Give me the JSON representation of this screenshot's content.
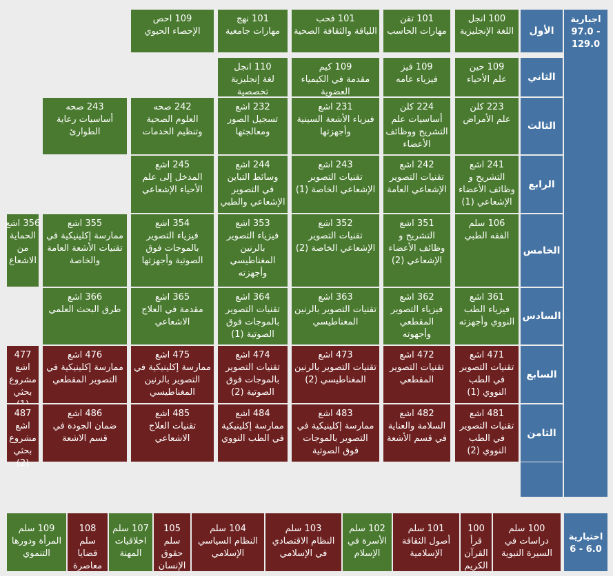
{
  "colors": {
    "green": "#4a7a30",
    "maroon": "#6d2020",
    "blue": "#4573a3",
    "background": "#ececec"
  },
  "required": {
    "line1": "اجبارية",
    "line2": "97.0 -",
    "line3": "129.0"
  },
  "elective": {
    "line1": "اختيارية",
    "line2": "6 - 6.0"
  },
  "levels": [
    "الأول",
    "الثاني",
    "الثالث",
    "الرابع",
    "الخامس",
    "السادس",
    "السابع",
    "الثامن",
    ""
  ],
  "rows": [
    [
      {
        "code": "100 انجل",
        "name": "اللغة الإنجليزية",
        "color": "green"
      },
      {
        "code": "101 تقن",
        "name": "مهارات الحاسب",
        "color": "green"
      },
      {
        "code": "101 فحب",
        "name": "اللياقة والثقافة الصحية",
        "color": "green"
      },
      {
        "code": "101 نهج",
        "name": "مهارات جامعية",
        "color": "green"
      },
      {
        "code": "109 احص",
        "name": "الإحصاء الحيوي",
        "color": "green"
      }
    ],
    [
      {
        "code": "109 حين",
        "name": "علم الأحياء",
        "color": "green"
      },
      {
        "code": "109 فيز",
        "name": "فيزياء عامه",
        "color": "green"
      },
      {
        "code": "109 كيم",
        "name": "مقدمة في الكيمياء العضوية",
        "color": "green"
      },
      {
        "code": "110 انجل",
        "name": "لغة إنجليزية تخصصية",
        "color": "green"
      }
    ],
    [
      {
        "code": "223 كلن",
        "name": "علم الأمراض",
        "color": "green"
      },
      {
        "code": "224 كلن",
        "name": "أساسيات علم التشريح ووظائف الأعضاء",
        "color": "green"
      },
      {
        "code": "231 اشع",
        "name": "فيزياء الأشعة السينية وأجهزتها",
        "color": "green"
      },
      {
        "code": "232 اشع",
        "name": "تسجيل الصور ومعالجتها",
        "color": "green"
      },
      {
        "code": "242 صحه",
        "name": "العلوم الصحية وتنظيم الخدمات",
        "color": "green"
      },
      {
        "code": "243 صحه",
        "name": "أساسيات رعاية الطوارئ",
        "color": "green"
      }
    ],
    [
      {
        "code": "241 اشع",
        "name": "التشريح و وظائف الأعضاء الإشعاعي (1)",
        "color": "green"
      },
      {
        "code": "242 اشع",
        "name": "تقنيات التصوير الإشعاعي العامة",
        "color": "green"
      },
      {
        "code": "243 اشع",
        "name": "تقنيات التصوير الإشعاعي الخاصة (1)",
        "color": "green"
      },
      {
        "code": "244 اشع",
        "name": "وسائط التباين في التصوير الإشعاعي والطبي",
        "color": "green"
      },
      {
        "code": "245 اشع",
        "name": "المدخل إلى علم الأحياء الإشعاعي",
        "color": "green"
      }
    ],
    [
      {
        "code": "106 سلم",
        "name": "الفقه الطبي",
        "color": "green"
      },
      {
        "code": "351 اشع",
        "name": "التشريح و وظائف الأعضاء الإشعاعي (2)",
        "color": "green"
      },
      {
        "code": "352 اشع",
        "name": "تقنيات التصوير الإشعاعي الخاصة (2)",
        "color": "green"
      },
      {
        "code": "353 اشع",
        "name": "فيزياء التصوير بالرنين المغناطيسي وأجهزته",
        "color": "green"
      },
      {
        "code": "354 اشع",
        "name": "فيزياء التصوير بالموجات فوق الصوتية وأجهزتها",
        "color": "green"
      },
      {
        "code": "355 اشع",
        "name": "ممارسة إكلينيكية في تقنيات الأشعة العامة والخاصة",
        "color": "green"
      },
      {
        "code": "356 اشع",
        "name": "الحماية من الاشعاع",
        "color": "green"
      }
    ],
    [
      {
        "code": "361 اشع",
        "name": "فيزياء الطب النووي وأجهزته",
        "color": "green"
      },
      {
        "code": "362 اشع",
        "name": "فيزياء التصوير المقطعي وأجهوته",
        "color": "green"
      },
      {
        "code": "363 اشع",
        "name": "تقنيات التصوير بالرنين المغناطيسي",
        "color": "green"
      },
      {
        "code": "364 اشع",
        "name": "تقنيات التصوير بالموجات فوق الصوتية (1)",
        "color": "green"
      },
      {
        "code": "365 اشع",
        "name": "مقدمة في العلاج الاشعاعي",
        "color": "green"
      },
      {
        "code": "366 اشع",
        "name": "طرق البحث العلمي",
        "color": "green"
      }
    ],
    [
      {
        "code": "471 اشع",
        "name": "تقنيات التصوير في الطب النووي (1)",
        "color": "maroon"
      },
      {
        "code": "472 اشع",
        "name": "تقنيات التصوير المقطعي",
        "color": "maroon"
      },
      {
        "code": "473 اشع",
        "name": "تقنيات التصوير بالرنين المغناطيسي (2)",
        "color": "maroon"
      },
      {
        "code": "474 اشع",
        "name": "تقنيات التصوير بالموجات فوق الصوتية (2)",
        "color": "maroon"
      },
      {
        "code": "475 اشع",
        "name": "ممارسة إكلينيكية في التصوير بالرنين المغناطيسي",
        "color": "maroon"
      },
      {
        "code": "476 اشع",
        "name": "ممارسة إكلينيكية في التصوير المقطعي",
        "color": "maroon"
      },
      {
        "code": "477",
        "name": "اشع مشروع بحثي (1)",
        "color": "maroon"
      }
    ],
    [
      {
        "code": "481 اشع",
        "name": "تقنيات التصوير في الطب النووي (2)",
        "color": "maroon"
      },
      {
        "code": "482 اشع",
        "name": "السلامة والعناية في قسم الأشعة",
        "color": "maroon"
      },
      {
        "code": "483 اشع",
        "name": "ممارسة إكلينيكية في التصوير بالموجات فوق الصوتية",
        "color": "maroon"
      },
      {
        "code": "484 اشع",
        "name": "ممارسة إكلينيكية في الطب النووي",
        "color": "maroon"
      },
      {
        "code": "485 اشع",
        "name": "تقنيات العلاج الاشعاعي",
        "color": "maroon"
      },
      {
        "code": "486 اشع",
        "name": "ضمان الجودة في قسم الاشعة",
        "color": "maroon"
      },
      {
        "code": "487",
        "name": "اشع مشروع بحثي (2)",
        "color": "maroon"
      }
    ]
  ],
  "electives": [
    {
      "code": "100 سلم",
      "name": "دراسات في السيرة النبوية",
      "color": "maroon"
    },
    {
      "code": "100",
      "name": "قرأ القرآن الكريم",
      "color": "maroon"
    },
    {
      "code": "101 سلم",
      "name": "أصول الثقافة الإسلامية",
      "color": "maroon"
    },
    {
      "code": "102 سلم",
      "name": "الأسرة في الإسلام",
      "color": "green"
    },
    {
      "code": "103 سلم",
      "name": "النظام الاقتصادي في الإسلامي",
      "color": "maroon"
    },
    {
      "code": "104 سلم",
      "name": "النظام السياسي الإسلامي",
      "color": "maroon"
    },
    {
      "code": "105",
      "name": "سلم حقوق الإنسان",
      "color": "maroon"
    },
    {
      "code": "107 سلم",
      "name": "اخلاقيات المهنة",
      "color": "green"
    },
    {
      "code": "108",
      "name": "سلم قضايا معاصرة",
      "color": "maroon"
    },
    {
      "code": "109 سلم",
      "name": "المرأة ودورها التنموي",
      "color": "green"
    }
  ]
}
